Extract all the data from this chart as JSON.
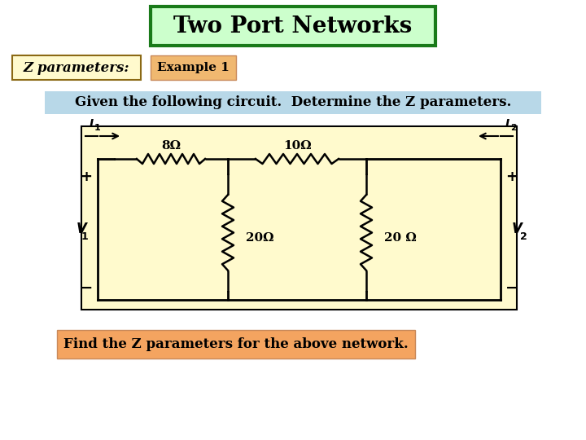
{
  "title": "Two Port Networks",
  "title_bg": "#ccffcc",
  "title_border": "#1a7a1a",
  "subtitle_left": "Z parameters:",
  "subtitle_left_bg": "#fffacd",
  "subtitle_left_border": "#8B6914",
  "subtitle_right": "Example 1",
  "subtitle_right_bg": "#f0b870",
  "given_text": "Given the following circuit.  Determine the Z parameters.",
  "given_bg": "#b8d8e8",
  "find_text": "Find the Z parameters for the above network.",
  "find_bg": "#f4a460",
  "circuit_bg": "#fffacd",
  "bg_color": "#ffffff",
  "R1_label": "8Ω",
  "R2_label": "10Ω",
  "R3_label": "20Ω",
  "R4_label": "20 Ω",
  "I1_label": "I",
  "I1_sub": "1",
  "I2_label": "I",
  "I2_sub": "2",
  "V1_label": "V",
  "V1_sub": "1",
  "V2_label": "V",
  "V2_sub": "2"
}
